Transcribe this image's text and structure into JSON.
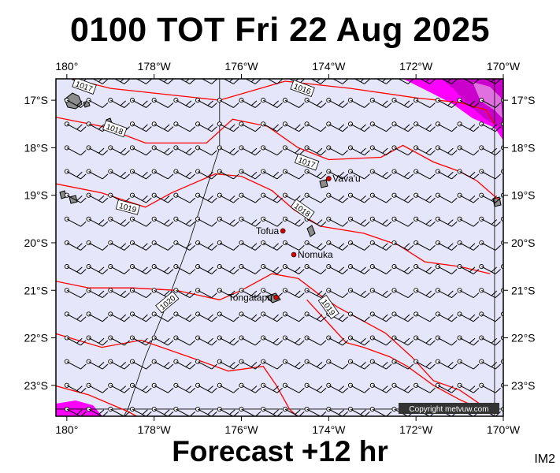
{
  "title": "0100 TOT Fri 22 Aug 2025",
  "footer": "Forecast +12 hr",
  "image_label": "IM2",
  "copyright": "Copyright metvuw.com",
  "colors": {
    "background": "#e6e6fa",
    "isobar": "#ff0000",
    "rain": "#ff00ff",
    "rain_heavy": "#cc00cc",
    "place_dot": "#dd0000"
  },
  "axes": {
    "lon_labels": [
      "180°",
      "178°W",
      "176°W",
      "174°W",
      "172°W",
      "170°W"
    ],
    "lon_values": [
      180,
      178,
      176,
      174,
      172,
      170
    ],
    "lat_labels": [
      "17°S",
      "18°S",
      "19°S",
      "20°S",
      "21°S",
      "22°S",
      "23°S"
    ],
    "lat_values": [
      17,
      18,
      19,
      20,
      21,
      22,
      23
    ],
    "lon_range": [
      170,
      180.25
    ],
    "lat_range": [
      16.55,
      23.65
    ]
  },
  "places": [
    {
      "name": "Vava'u",
      "lon": 174.0,
      "lat": 18.65
    },
    {
      "name": "Tofua",
      "lon": 175.05,
      "lat": 19.75
    },
    {
      "name": "Nomuka",
      "lon": 174.8,
      "lat": 20.25
    },
    {
      "name": "Tongatapu",
      "lon": 175.2,
      "lat": 21.15
    }
  ],
  "isobar_labels": [
    {
      "text": "1017",
      "lon": 179.6,
      "lat": 16.7,
      "angle": 20
    },
    {
      "text": "1016",
      "lon": 174.6,
      "lat": 16.75,
      "angle": 20
    },
    {
      "text": "1018",
      "lon": 178.9,
      "lat": 17.6,
      "angle": 20
    },
    {
      "text": "1017",
      "lon": 174.5,
      "lat": 18.3,
      "angle": 20
    },
    {
      "text": "1019",
      "lon": 178.6,
      "lat": 19.25,
      "angle": 15
    },
    {
      "text": "1018",
      "lon": 174.6,
      "lat": 19.3,
      "angle": 35
    },
    {
      "text": "1020",
      "lon": 177.7,
      "lat": 21.25,
      "angle": -40
    },
    {
      "text": "1019",
      "lon": 174.0,
      "lat": 21.35,
      "angle": 55
    }
  ]
}
